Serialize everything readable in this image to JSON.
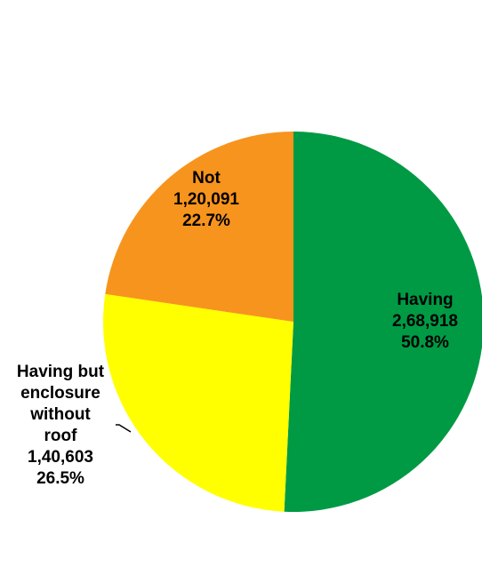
{
  "chart_data": {
    "type": "pie",
    "start_angle_deg": 0,
    "direction": "clockwise",
    "slices": [
      {
        "category_lines": [
          "Having"
        ],
        "value": 268918,
        "value_label": "2,68,918",
        "percent_label": "50.8%",
        "color": "#009a44"
      },
      {
        "category_lines": [
          "Having but",
          "enclosure",
          "without",
          "roof"
        ],
        "value": 140603,
        "value_label": "1,40,603",
        "percent_label": "26.5%",
        "color": "#ffff00"
      },
      {
        "category_lines": [
          "Not"
        ],
        "value": 120091,
        "value_label": "1,20,091",
        "percent_label": "22.7%",
        "color": "#f7941d"
      }
    ]
  }
}
